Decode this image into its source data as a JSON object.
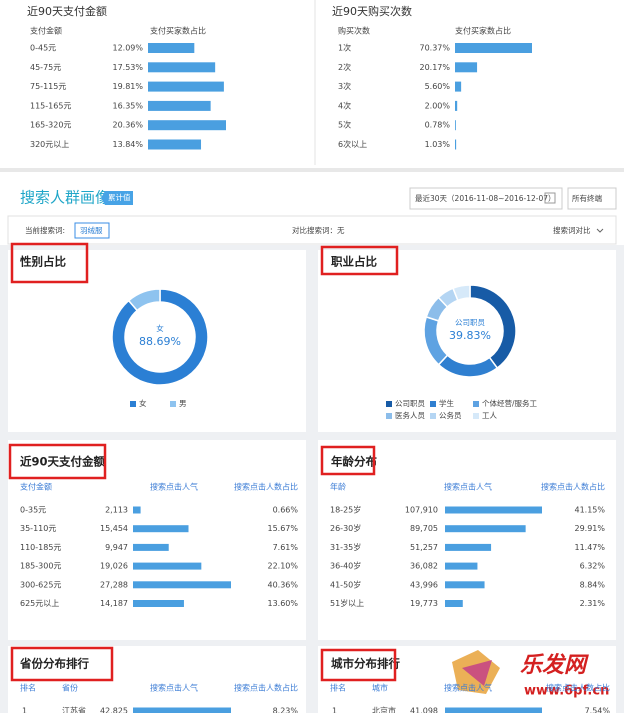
{
  "top_left": {
    "title": "近90天支付金额",
    "headers": [
      "支付金额",
      "支付买家数占比"
    ],
    "rows": [
      [
        "0-45元",
        {
          "value": 12.09,
          "label": "12.09%"
        }
      ],
      [
        "45-75元",
        {
          "value": 17.53,
          "label": "17.53%"
        }
      ],
      [
        "75-115元",
        {
          "value": 19.81,
          "label": "19.81%"
        }
      ],
      [
        "115-165元",
        {
          "value": 16.35,
          "label": "16.35%"
        }
      ],
      [
        "165-320元",
        {
          "value": 20.36,
          "label": "20.36%"
        }
      ],
      [
        "320元以上",
        {
          "value": 13.84,
          "label": "13.84%"
        }
      ]
    ]
  },
  "top_right": {
    "title": "近90天购买次数",
    "headers": [
      "购买次数",
      "支付买家数占比"
    ],
    "rows": [
      [
        "1次",
        {
          "value": 70.37,
          "label": "70.37%"
        }
      ],
      [
        "2次",
        {
          "value": 20.17,
          "label": "20.17%"
        }
      ],
      [
        "3次",
        {
          "value": 5.6,
          "label": "5.60%"
        }
      ],
      [
        "4次",
        {
          "value": 2.0,
          "label": "2.00%"
        }
      ],
      [
        "5次",
        {
          "value": 0.78,
          "label": "0.78%"
        }
      ],
      [
        "6次以上",
        {
          "value": 1.03,
          "label": "1.03%"
        }
      ]
    ]
  },
  "search_portrait": {
    "title": "搜索人群画像",
    "badge": "累计值",
    "date_range": "最近30天（2016-11-08~2016-12-07）",
    "terminal": "所有终端",
    "current_term_label": "当前搜索词:",
    "current_term": "羽绒服",
    "compare_term": "对比搜索词：无",
    "compare_button": "搜索词对比"
  },
  "gender": {
    "type": "pie",
    "title": "性别占比",
    "categories": [
      "女",
      "男"
    ],
    "values": [
      88.69,
      11.31
    ],
    "colors": [
      "#2b7fd4",
      "#8ec3ef"
    ],
    "center_value": "88.69%"
  },
  "occupation": {
    "type": "pie",
    "title": "职业占比",
    "categories": [
      "公司职员",
      "学生",
      "个体经营/服务工",
      "医务人员",
      "公务员",
      "工人"
    ],
    "values": [
      39.83,
      22,
      18,
      8,
      6,
      6
    ],
    "colors": [
      "#175ba6",
      "#2f7fd0",
      "#5ea2e2",
      "#8cbdea",
      "#b4d5f3",
      "#d6e9f9"
    ],
    "center_value": "39.83%"
  },
  "pay_amount": {
    "title": "近90天支付金额",
    "headers": [
      "支付金额",
      "搜索点击人气",
      "搜索点击人数占比"
    ],
    "rows": [
      [
        "0-35元",
        {
          "value": 2113,
          "label": "2,113"
        },
        "0.66%"
      ],
      [
        "35-110元",
        {
          "value": 15454,
          "label": "15,454"
        },
        "15.67%"
      ],
      [
        "110-185元",
        {
          "value": 9947,
          "label": "9,947"
        },
        "7.61%"
      ],
      [
        "185-300元",
        {
          "value": 19026,
          "label": "19,026"
        },
        "22.10%"
      ],
      [
        "300-625元",
        {
          "value": 27288,
          "label": "27,288"
        },
        "40.36%"
      ],
      [
        "625元以上",
        {
          "value": 14187,
          "label": "14,187"
        },
        "13.60%"
      ]
    ]
  },
  "age": {
    "title": "年龄分布",
    "headers": [
      "年龄",
      "搜索点击人气",
      "搜索点击人数占比"
    ],
    "rows": [
      [
        "18-25岁",
        {
          "value": 107910,
          "label": "107,910"
        },
        "41.15%"
      ],
      [
        "26-30岁",
        {
          "value": 89705,
          "label": "89,705"
        },
        "29.91%"
      ],
      [
        "31-35岁",
        {
          "value": 51257,
          "label": "51,257"
        },
        "11.47%"
      ],
      [
        "36-40岁",
        {
          "value": 36082,
          "label": "36,082"
        },
        "6.32%"
      ],
      [
        "41-50岁",
        {
          "value": 43996,
          "label": "43,996"
        },
        "8.84%"
      ],
      [
        "51岁以上",
        {
          "value": 19773,
          "label": "19,773"
        },
        "2.31%"
      ]
    ]
  },
  "province": {
    "title": "省份分布排行",
    "headers": [
      "排名",
      "省份",
      "搜索点击人气",
      "搜索点击人数占比"
    ],
    "rows": [
      [
        "1",
        "江苏省",
        {
          "value": 42825,
          "label": "42,825"
        },
        "8.23%"
      ]
    ]
  },
  "city": {
    "title": "城市分布排行",
    "headers": [
      "排名",
      "城市",
      "搜索点击人气",
      "搜索点击人数占比"
    ],
    "rows": [
      [
        "1",
        "北京市",
        {
          "value": 41098,
          "label": "41,098"
        },
        "7.54%"
      ]
    ]
  },
  "watermark": {
    "brand": "乐发网",
    "url": "www.6pf.cn"
  }
}
